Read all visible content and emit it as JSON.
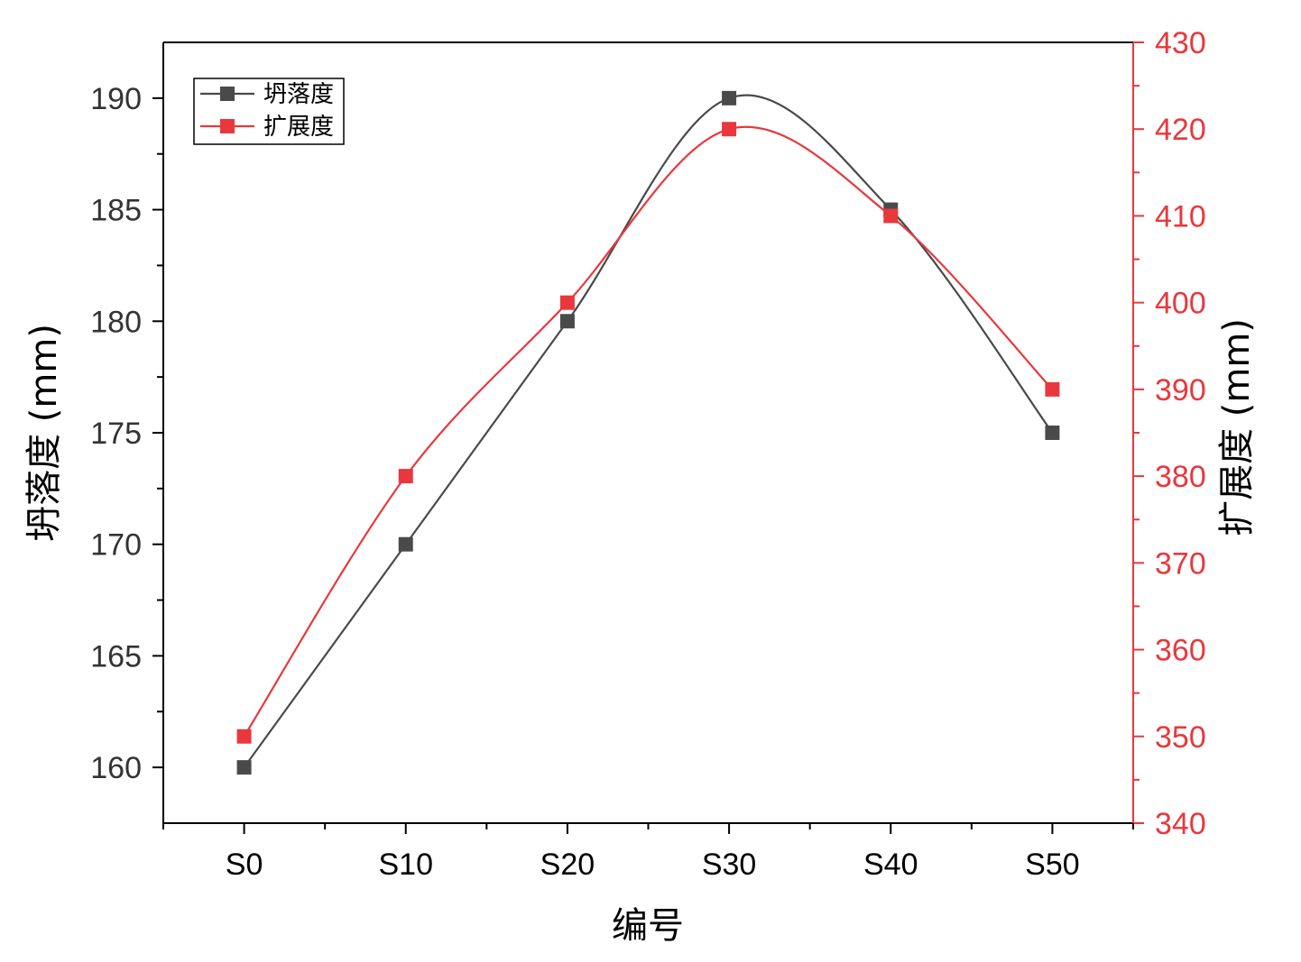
{
  "chart_data": {
    "type": "line",
    "title": "",
    "xlabel": "编号",
    "ylabel_left": "坍落度 (mm)",
    "ylabel_right": "扩展度 (mm)",
    "categories": [
      "S0",
      "S10",
      "S20",
      "S30",
      "S40",
      "S50"
    ],
    "ylim_left": [
      157.5,
      192.5
    ],
    "ylim_right": [
      340,
      430
    ],
    "yticks_left": [
      160,
      165,
      170,
      175,
      180,
      185,
      190
    ],
    "yticks_right": [
      340,
      350,
      360,
      370,
      380,
      390,
      400,
      410,
      420,
      430
    ],
    "series": [
      {
        "name": "坍落度",
        "axis": "left",
        "color": "#4a4a4a",
        "marker": "square",
        "smooth": true,
        "values": [
          160,
          170,
          180,
          190,
          185,
          175
        ]
      },
      {
        "name": "扩展度",
        "axis": "right",
        "color": "#e8383d",
        "marker": "square",
        "smooth": true,
        "values": [
          350,
          380,
          400,
          420,
          410,
          390
        ]
      }
    ],
    "legend_position": "top-left",
    "grid": false,
    "colors": {
      "left_axis": "#000000",
      "right_axis": "#e8383d"
    }
  }
}
